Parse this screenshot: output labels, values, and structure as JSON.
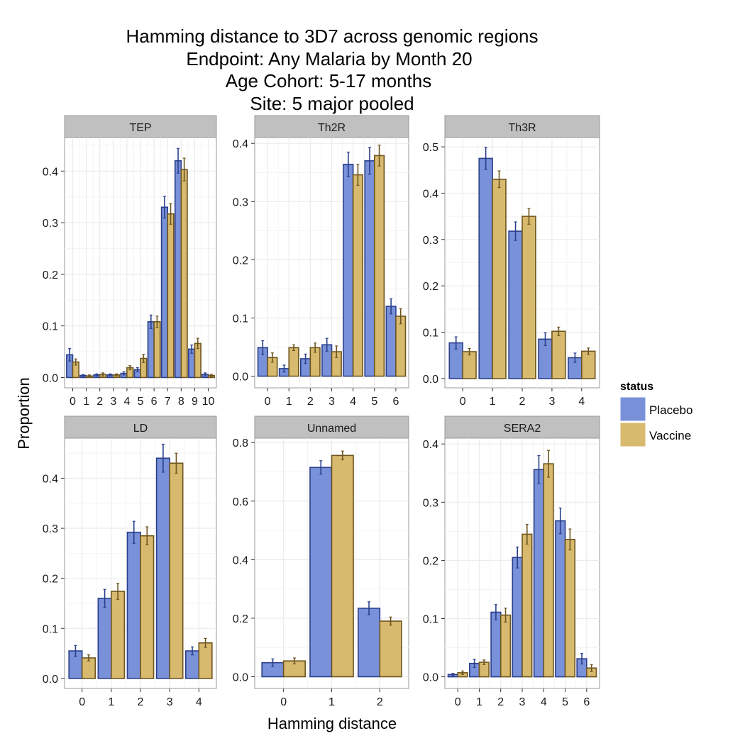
{
  "title_lines": [
    "Hamming distance to 3D7 across genomic regions",
    "Endpoint: Any Malaria by Month 20",
    "Age Cohort: 5-17 months",
    "Site: 5 major pooled"
  ],
  "xlabel": "Hamming distance",
  "ylabel": "Proportion",
  "legend": {
    "title": "status",
    "entries": [
      {
        "label": "Placebo",
        "fill": "#7891D8",
        "stroke": "#2B3F8C"
      },
      {
        "label": "Vaccine",
        "fill": "#D8BA6E",
        "stroke": "#6E5520"
      }
    ]
  },
  "colors": {
    "strip_bg": "#C0C0C0",
    "grid": "#EBEBEB",
    "panel_border": "#999999"
  },
  "chart_data": [
    {
      "type": "bar",
      "panel": "TEP",
      "categories": [
        "0",
        "1",
        "2",
        "3",
        "4",
        "5",
        "6",
        "7",
        "8",
        "9",
        "10"
      ],
      "ylim": [
        -0.02,
        0.465
      ],
      "yticks": [
        0.0,
        0.1,
        0.2,
        0.3,
        0.4
      ],
      "ytick_labels": [
        "0.0",
        "0.1",
        "0.2",
        "0.3",
        "0.4"
      ],
      "series": [
        {
          "name": "Placebo",
          "values": [
            0.044,
            0.004,
            0.005,
            0.005,
            0.008,
            0.015,
            0.108,
            0.33,
            0.42,
            0.055,
            0.006
          ],
          "err": [
            0.012,
            0.002,
            0.002,
            0.002,
            0.003,
            0.004,
            0.013,
            0.021,
            0.024,
            0.008,
            0.003
          ]
        },
        {
          "name": "Vaccine",
          "values": [
            0.03,
            0.003,
            0.006,
            0.005,
            0.019,
            0.037,
            0.108,
            0.317,
            0.403,
            0.066,
            0.004
          ],
          "err": [
            0.006,
            0.002,
            0.003,
            0.002,
            0.004,
            0.008,
            0.011,
            0.02,
            0.022,
            0.01,
            0.002
          ]
        }
      ]
    },
    {
      "type": "bar",
      "panel": "Th2R",
      "categories": [
        "0",
        "1",
        "2",
        "3",
        "4",
        "5",
        "6"
      ],
      "ylim": [
        -0.02,
        0.41
      ],
      "yticks": [
        0.0,
        0.1,
        0.2,
        0.3,
        0.4
      ],
      "ytick_labels": [
        "0.0",
        "0.1",
        "0.2",
        "0.3",
        "0.4"
      ],
      "series": [
        {
          "name": "Placebo",
          "values": [
            0.049,
            0.013,
            0.03,
            0.054,
            0.364,
            0.37,
            0.12
          ],
          "err": [
            0.012,
            0.006,
            0.008,
            0.011,
            0.021,
            0.023,
            0.013
          ]
        },
        {
          "name": "Vaccine",
          "values": [
            0.032,
            0.049,
            0.049,
            0.042,
            0.346,
            0.379,
            0.103
          ],
          "err": [
            0.008,
            0.005,
            0.008,
            0.01,
            0.018,
            0.018,
            0.013
          ]
        }
      ]
    },
    {
      "type": "bar",
      "panel": "Th3R",
      "categories": [
        "0",
        "1",
        "2",
        "3",
        "4"
      ],
      "ylim": [
        -0.02,
        0.52
      ],
      "yticks": [
        0.0,
        0.1,
        0.2,
        0.3,
        0.4,
        0.5
      ],
      "ytick_labels": [
        "0.0",
        "0.1",
        "0.2",
        "0.3",
        "0.4",
        "0.5"
      ],
      "series": [
        {
          "name": "Placebo",
          "values": [
            0.077,
            0.475,
            0.318,
            0.085,
            0.045
          ],
          "err": [
            0.013,
            0.024,
            0.02,
            0.014,
            0.01
          ]
        },
        {
          "name": "Vaccine",
          "values": [
            0.058,
            0.43,
            0.35,
            0.102,
            0.059
          ],
          "err": [
            0.007,
            0.018,
            0.017,
            0.009,
            0.007
          ]
        }
      ]
    },
    {
      "type": "bar",
      "panel": "LD",
      "categories": [
        "0",
        "1",
        "2",
        "3",
        "4"
      ],
      "ylim": [
        -0.02,
        0.48
      ],
      "yticks": [
        0.0,
        0.1,
        0.2,
        0.3,
        0.4
      ],
      "ytick_labels": [
        "0.0",
        "0.1",
        "0.2",
        "0.3",
        "0.4"
      ],
      "series": [
        {
          "name": "Placebo",
          "values": [
            0.055,
            0.16,
            0.292,
            0.44,
            0.055
          ],
          "err": [
            0.011,
            0.018,
            0.022,
            0.028,
            0.008
          ]
        },
        {
          "name": "Vaccine",
          "values": [
            0.041,
            0.174,
            0.285,
            0.43,
            0.071
          ],
          "err": [
            0.006,
            0.016,
            0.018,
            0.02,
            0.009
          ]
        }
      ]
    },
    {
      "type": "bar",
      "panel": "Unnamed",
      "categories": [
        "0",
        "1",
        "2"
      ],
      "ylim": [
        -0.04,
        0.815
      ],
      "yticks": [
        0.0,
        0.2,
        0.4,
        0.6,
        0.8
      ],
      "ytick_labels": [
        "0.0",
        "0.2",
        "0.4",
        "0.6",
        "0.8"
      ],
      "series": [
        {
          "name": "Placebo",
          "values": [
            0.048,
            0.715,
            0.234
          ],
          "err": [
            0.013,
            0.023,
            0.022
          ]
        },
        {
          "name": "Vaccine",
          "values": [
            0.054,
            0.756,
            0.19
          ],
          "err": [
            0.01,
            0.015,
            0.014
          ]
        }
      ]
    },
    {
      "type": "bar",
      "panel": "SERA2",
      "categories": [
        "0",
        "1",
        "2",
        "3",
        "4",
        "5",
        "6"
      ],
      "ylim": [
        -0.02,
        0.41
      ],
      "yticks": [
        0.0,
        0.1,
        0.2,
        0.3,
        0.4
      ],
      "ytick_labels": [
        "0.0",
        "0.1",
        "0.2",
        "0.3",
        "0.4"
      ],
      "series": [
        {
          "name": "Placebo",
          "values": [
            0.004,
            0.023,
            0.111,
            0.205,
            0.356,
            0.268,
            0.031
          ],
          "err": [
            0.002,
            0.007,
            0.013,
            0.018,
            0.024,
            0.022,
            0.009
          ]
        },
        {
          "name": "Vaccine",
          "values": [
            0.007,
            0.025,
            0.106,
            0.245,
            0.366,
            0.236,
            0.015
          ],
          "err": [
            0.003,
            0.004,
            0.012,
            0.017,
            0.023,
            0.018,
            0.006
          ]
        }
      ]
    }
  ]
}
